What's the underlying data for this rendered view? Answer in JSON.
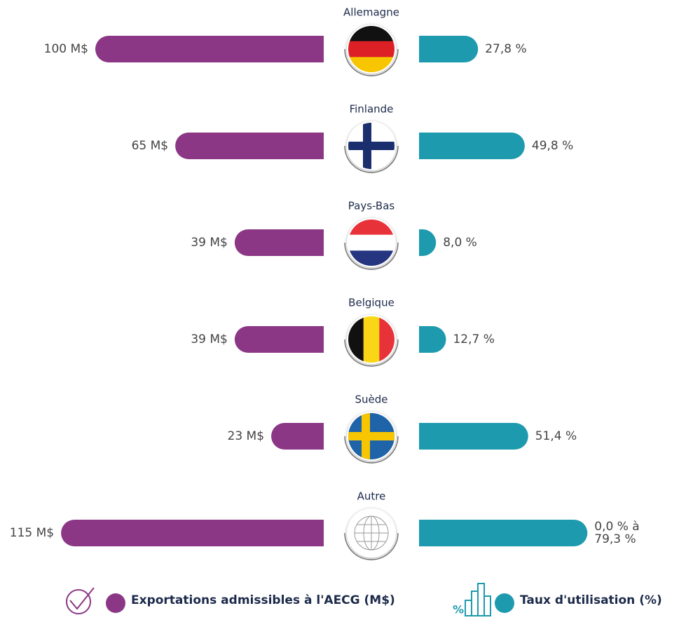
{
  "chart_data": {
    "type": "butterfly-bar",
    "categories": [
      "Allemagne",
      "Finlande",
      "Pays-Bas",
      "Belgique",
      "Suède",
      "Autre"
    ],
    "series": [
      {
        "name": "Exportations admissibles à l'AECG (M$)",
        "color": "#8b3785",
        "values": [
          100,
          65,
          39,
          39,
          23,
          115
        ],
        "value_labels": [
          "100 M$",
          "65 M$",
          "39 M$",
          "39 M$",
          "23 M$",
          "115 M$"
        ]
      },
      {
        "name": "Taux d'utilisation (%)",
        "color": "#1e9aae",
        "values": [
          27.8,
          49.8,
          8.0,
          12.7,
          51.4,
          79.3
        ],
        "value_labels": [
          "27,8 %",
          "49,8 %",
          "8,0 %",
          "12,7 %",
          "51,4 %",
          "0,0 % à 79,3 %"
        ]
      }
    ]
  }
}
